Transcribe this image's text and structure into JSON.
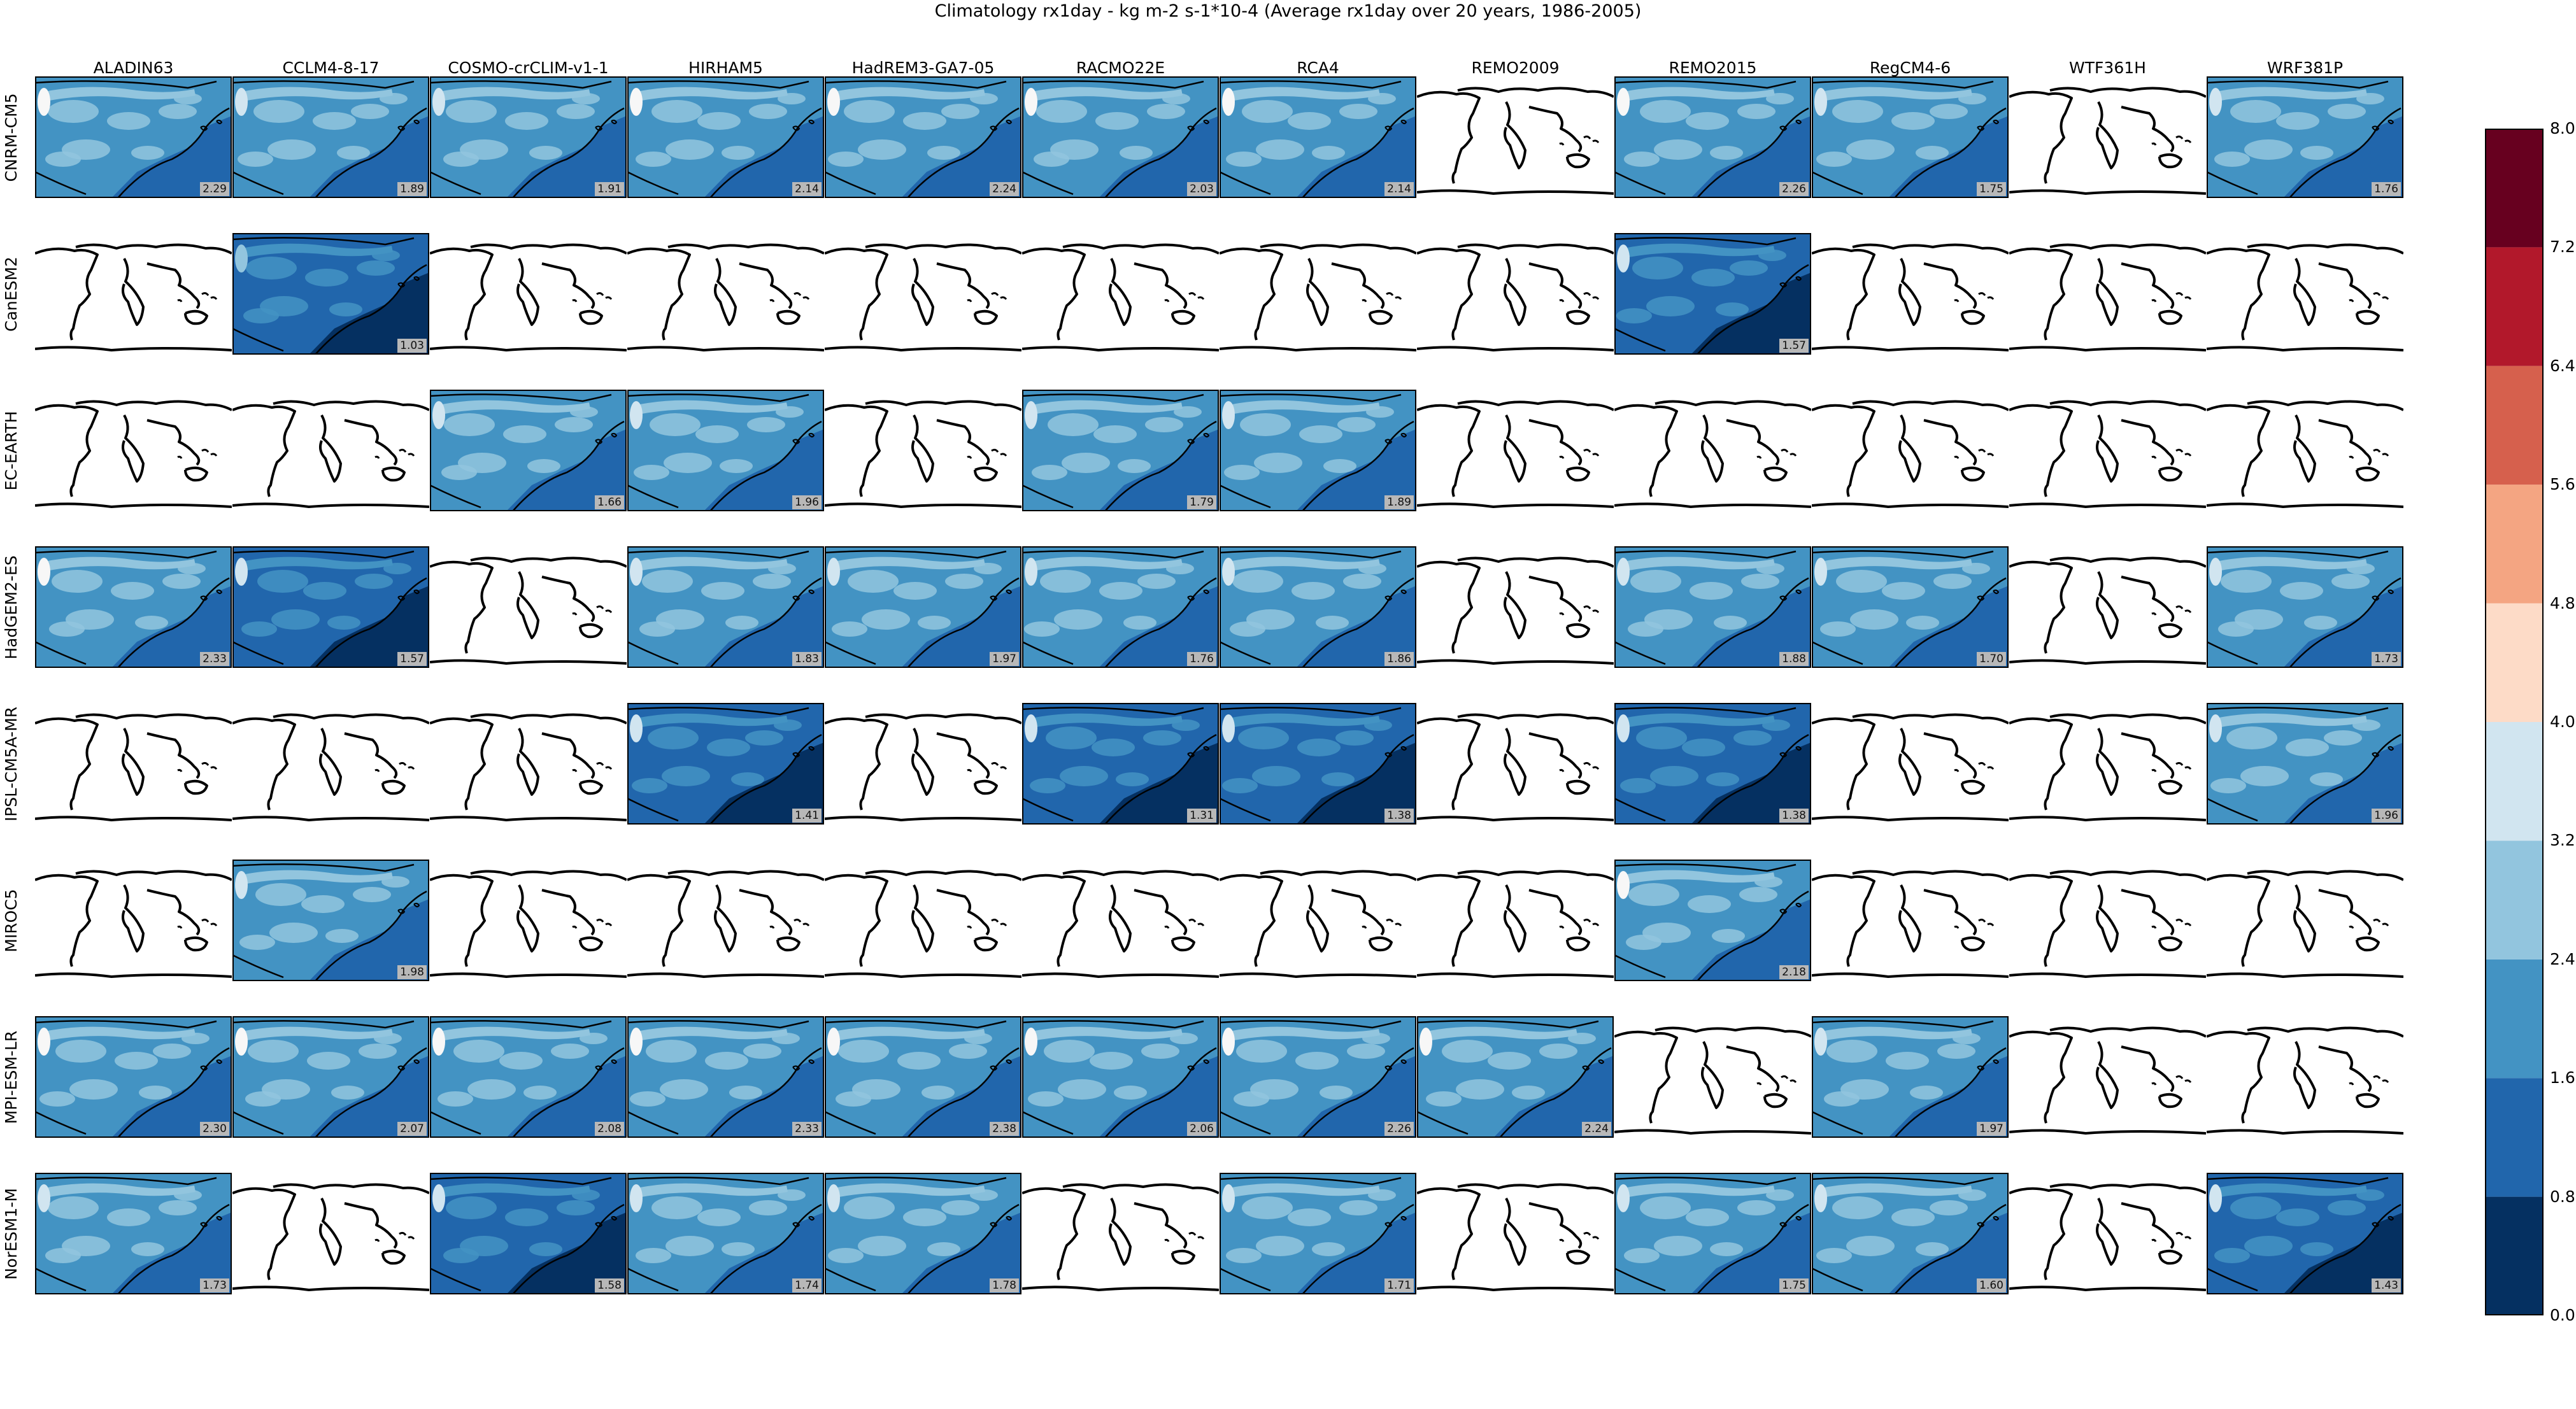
{
  "title": "Climatology rx1day - kg m-2 s-1*10-4 (Average rx1day over 20 years, 1986-2005)",
  "columns": [
    "ALADIN63",
    "CCLM4-8-17",
    "COSMO-crCLIM-v1-1",
    "HIRHAM5",
    "HadREM3-GA7-05",
    "RACMO22E",
    "RCA4",
    "REMO2009",
    "REMO2015",
    "RegCM4-6",
    "WTF361H",
    "WRF381P"
  ],
  "rows": [
    "CNRM-CM5",
    "CanESM2",
    "EC-EARTH",
    "HadGEM2-ES",
    "IPSL-CM5A-MR",
    "MIROC5",
    "MPI-ESM-LR",
    "NorESM1-M"
  ],
  "values": [
    [
      "2.29",
      "1.89",
      "1.91",
      "2.14",
      "2.24",
      "2.03",
      "2.14",
      null,
      "2.26",
      "1.75",
      null,
      "1.76"
    ],
    [
      null,
      "1.03",
      null,
      null,
      null,
      null,
      null,
      null,
      "1.57",
      null,
      null,
      null
    ],
    [
      null,
      null,
      "1.66",
      "1.96",
      null,
      "1.79",
      "1.89",
      null,
      null,
      null,
      null,
      null
    ],
    [
      "2.33",
      "1.57",
      null,
      "1.83",
      "1.97",
      "1.76",
      "1.86",
      null,
      "1.88",
      "1.70",
      null,
      "1.73"
    ],
    [
      null,
      null,
      null,
      "1.41",
      null,
      "1.31",
      "1.38",
      null,
      "1.38",
      null,
      null,
      "1.96"
    ],
    [
      null,
      "1.98",
      null,
      null,
      null,
      null,
      null,
      null,
      "2.18",
      null,
      null,
      null
    ],
    [
      "2.30",
      "2.07",
      "2.08",
      "2.33",
      "2.38",
      "2.06",
      "2.26",
      "2.24",
      null,
      "1.97",
      null,
      null
    ],
    [
      "1.73",
      null,
      "1.58",
      "1.74",
      "1.78",
      null,
      "1.71",
      null,
      "1.75",
      "1.60",
      null,
      "1.43"
    ]
  ],
  "colorbar": {
    "ticks": [
      "0.0",
      "0.8",
      "1.6",
      "2.4",
      "3.2",
      "4.0",
      "4.8",
      "5.6",
      "6.4",
      "7.2",
      "8.0"
    ],
    "colors": [
      "#053061",
      "#2166ac",
      "#4393c3",
      "#92c5de",
      "#d1e5f0",
      "#f7f7f7",
      "#fddbc7",
      "#f4a582",
      "#d6604d",
      "#b2182b",
      "#67001f"
    ]
  }
}
